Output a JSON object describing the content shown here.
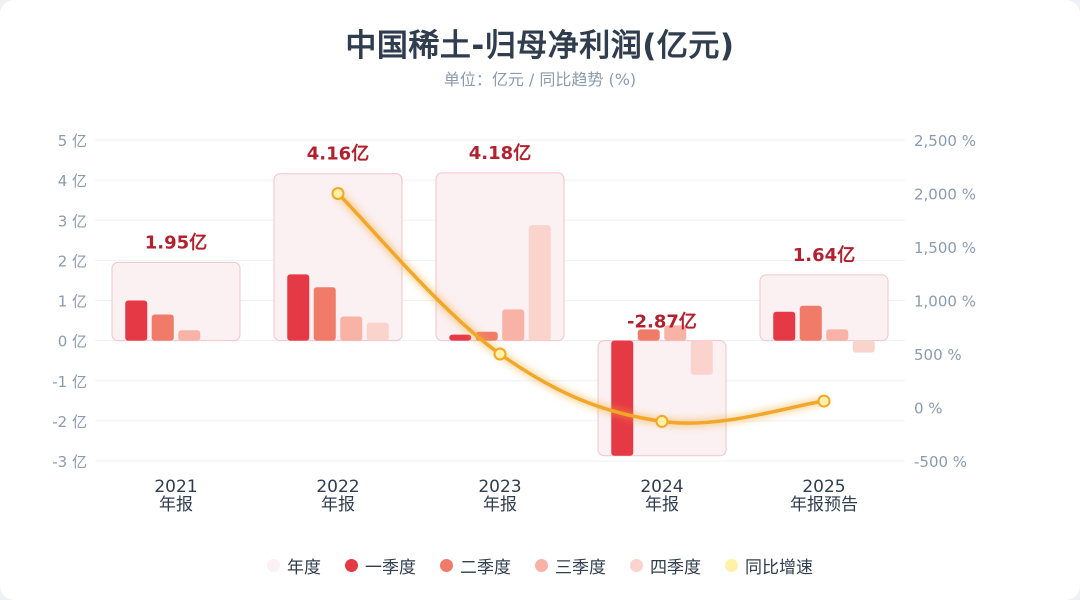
{
  "title": "中国稀土-归母净利润(亿元)",
  "subtitle": "单位：亿元 / 同比趋势 (%)",
  "colors": {
    "annual": "#f6e4e8",
    "annual_stroke": "#f2c4ce",
    "q1": "#e63946",
    "q2": "#f07b69",
    "q3": "#f8b3a6",
    "q4": "#fbd3cd",
    "yoy": "#f2a72a",
    "yoy_point": "#fff2a6",
    "annual_label": "#b3212f",
    "axis_text": "#8a9bb0",
    "category_text": "#2f3d4e"
  },
  "legend": [
    {
      "label": "年度",
      "color_key": "annual"
    },
    {
      "label": "一季度",
      "color_key": "q1"
    },
    {
      "label": "二季度",
      "color_key": "q2"
    },
    {
      "label": "三季度",
      "color_key": "q3"
    },
    {
      "label": "四季度",
      "color_key": "q4"
    },
    {
      "label": "同比增速",
      "color_key": "yoy_point"
    }
  ],
  "chart_data": {
    "type": "bar",
    "title": "中国稀土-归母净利润(亿元)",
    "subtitle": "单位：亿元 / 同比趋势 (%)",
    "categories": [
      {
        "year": "2021",
        "label": "年报"
      },
      {
        "year": "2022",
        "label": "年报"
      },
      {
        "year": "2023",
        "label": "年报"
      },
      {
        "year": "2024",
        "label": "年报"
      },
      {
        "year": "2025",
        "label": "年报预告"
      }
    ],
    "annual": {
      "name": "年度",
      "values": [
        1.95,
        4.16,
        4.18,
        -2.87,
        1.64
      ],
      "labels": [
        "1.95亿",
        "4.16亿",
        "4.18亿",
        "-2.87亿",
        "1.64亿"
      ]
    },
    "series": [
      {
        "name": "一季度",
        "values": [
          1.0,
          1.65,
          0.15,
          -2.87,
          0.72
        ]
      },
      {
        "name": "二季度",
        "values": [
          0.65,
          1.33,
          0.22,
          0.28,
          0.87
        ]
      },
      {
        "name": "三季度",
        "values": [
          0.26,
          0.6,
          0.78,
          0.38,
          0.28
        ]
      },
      {
        "name": "四季度",
        "values": [
          0.02,
          0.45,
          2.88,
          -0.85,
          -0.3
        ]
      }
    ],
    "yoy": {
      "name": "同比增速",
      "values": [
        null,
        2000,
        500,
        -130,
        60
      ]
    },
    "y_left": {
      "min": -3,
      "max": 5,
      "ticks": [
        "5 亿",
        "4 亿",
        "3 亿",
        "2 亿",
        "1 亿",
        "0 亿",
        "-1 亿",
        "-2 亿",
        "-3 亿"
      ]
    },
    "y_right": {
      "min": -500,
      "max": 2500,
      "ticks": [
        "2,500 %",
        "2,000 %",
        "1,500 %",
        "1,000 %",
        "500 %",
        "0 %",
        "-500 %"
      ]
    },
    "grid": true,
    "legend_position": "bottom"
  }
}
